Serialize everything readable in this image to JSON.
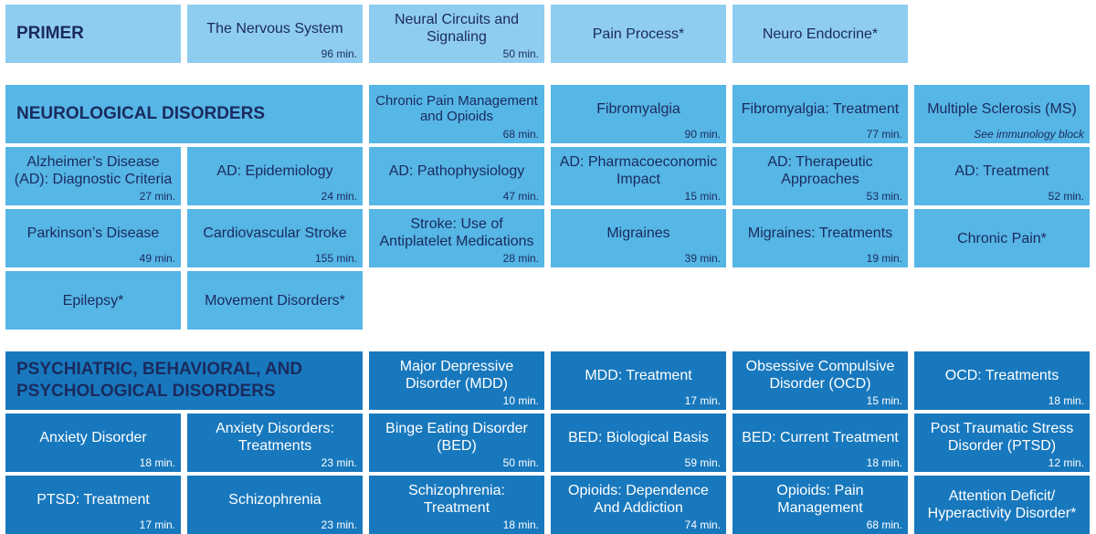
{
  "sections": {
    "primer": {
      "title": "PRIMER",
      "tiles": [
        {
          "title": "The Nervous System",
          "minutes": "96 min."
        },
        {
          "title": "Neural Circuits and Signaling",
          "minutes": "50 min."
        },
        {
          "title": "Pain Process*",
          "minutes": ""
        },
        {
          "title": "Neuro Endocrine*",
          "minutes": ""
        }
      ]
    },
    "neuro": {
      "title": "NEUROLOGICAL DISORDERS",
      "tiles": [
        {
          "title": "Chronic Pain Management and Opioids",
          "minutes": "68 min."
        },
        {
          "title": "Fibromyalgia",
          "minutes": "90 min."
        },
        {
          "title": "Fibromyalgia: Treatment",
          "minutes": "77 min."
        },
        {
          "title": "Multiple Sclerosis (MS)",
          "minutes": "See immunology block"
        },
        {
          "title": "Alzheimer’s Disease (AD): Diagnostic Criteria",
          "minutes": "27 min."
        },
        {
          "title": "AD: Epidemiology",
          "minutes": "24 min."
        },
        {
          "title": "AD: Pathophysiology",
          "minutes": "47 min."
        },
        {
          "title": "AD: Pharmacoeconomic Impact",
          "minutes": "15 min."
        },
        {
          "title": "AD: Therapeutic Approaches",
          "minutes": "53 min."
        },
        {
          "title": "AD: Treatment",
          "minutes": "52 min."
        },
        {
          "title": "Parkinson’s Disease",
          "minutes": "49 min."
        },
        {
          "title": "Cardiovascular Stroke",
          "minutes": "155 min."
        },
        {
          "title": "Stroke: Use of Antiplatelet Medications",
          "minutes": "28 min."
        },
        {
          "title": "Migraines",
          "minutes": "39 min."
        },
        {
          "title": "Migraines: Treatments",
          "minutes": "19 min."
        },
        {
          "title": "Chronic Pain*",
          "minutes": ""
        },
        {
          "title": "Epilepsy*",
          "minutes": ""
        },
        {
          "title": "Movement Disorders*",
          "minutes": ""
        }
      ]
    },
    "psych": {
      "title_line1": "PSYCHIATRIC, BEHAVIORAL, AND",
      "title_line2": "PSYCHOLOGICAL DISORDERS",
      "tiles": [
        {
          "title": "Major Depressive Disorder (MDD)",
          "minutes": "10 min."
        },
        {
          "title": "MDD: Treatment",
          "minutes": "17 min."
        },
        {
          "title": "Obsessive Compulsive Disorder (OCD)",
          "minutes": "15 min."
        },
        {
          "title": "OCD: Treatments",
          "minutes": "18 min."
        },
        {
          "title": "Anxiety Disorder",
          "minutes": "18 min."
        },
        {
          "title": "Anxiety Disorders: Treatments",
          "minutes": "23 min."
        },
        {
          "title": "Binge Eating Disorder (BED)",
          "minutes": "50 min."
        },
        {
          "title": "BED: Biological Basis",
          "minutes": "59 min."
        },
        {
          "title": "BED: Current Treatment",
          "minutes": "18 min."
        },
        {
          "title": "Post Traumatic Stress Disorder (PTSD)",
          "minutes": "12 min."
        },
        {
          "title": "PTSD: Treatment",
          "minutes": "17 min."
        },
        {
          "title": "Schizophrenia",
          "minutes": "23 min."
        },
        {
          "title": "Schizophrenia: Treatment",
          "minutes": "18 min."
        },
        {
          "title": "Opioids: Dependence And Addiction",
          "minutes": "74 min."
        },
        {
          "title": "Opioids: Pain Management",
          "minutes": "68 min."
        },
        {
          "title": "Attention Deficit/ Hyperactivity Disorder*",
          "minutes": ""
        }
      ]
    }
  },
  "colors": {
    "primer": "#8fcdf0",
    "neuro": "#56b6e6",
    "psych": "#1878bd",
    "header_text": "#1a2a5e"
  }
}
